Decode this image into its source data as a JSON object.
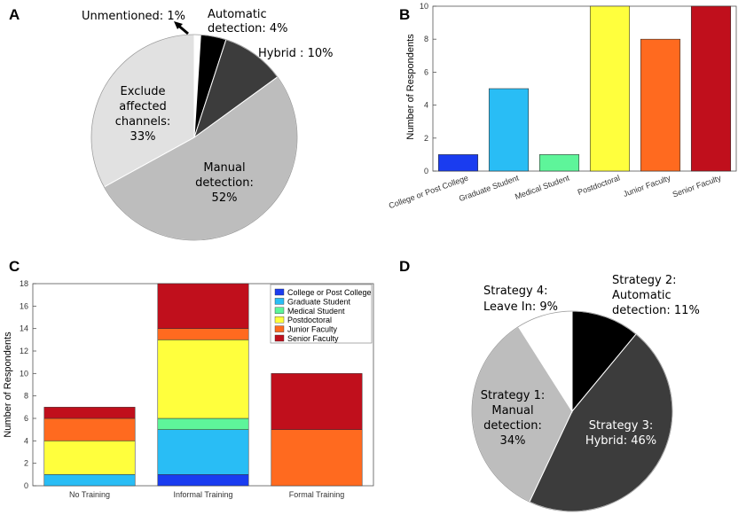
{
  "colors": {
    "college": "#1a3cf0",
    "graduate": "#29bdf5",
    "medical": "#5ef59a",
    "postdoc": "#ffff3d",
    "junior": "#ff6a1f",
    "senior": "#c00f1c"
  },
  "chart_data": [
    {
      "panel": "A",
      "type": "pie",
      "slices": [
        {
          "label": "Unmentioned: 1%",
          "value": 1,
          "color": "#ffffff"
        },
        {
          "label": "Automatic detection: 4%",
          "value": 4,
          "color": "#000000"
        },
        {
          "label": "Hybrid : 10%",
          "value": 10,
          "color": "#3c3c3c"
        },
        {
          "label": "Manual detection: 52%",
          "value": 52,
          "color": "#bdbdbd"
        },
        {
          "label": "Exclude affected channels: 33%",
          "value": 33,
          "color": "#e1e1e1"
        }
      ],
      "text_labels": {
        "unmentioned": "Unmentioned: 1%",
        "automatic_line1": "Automatic",
        "automatic_line2": "detection: 4%",
        "hybrid": "Hybrid : 10%",
        "exclude_line1": "Exclude",
        "exclude_line2": "affected",
        "exclude_line3": "channels:",
        "exclude_line4": "33%",
        "manual_line1": "Manual",
        "manual_line2": "detection:",
        "manual_line3": "52%"
      }
    },
    {
      "panel": "B",
      "type": "bar",
      "categories": [
        "College or Post College",
        "Graduate Student",
        "Medical Student",
        "Postdoctoral",
        "Junior Faculty",
        "Senior Faculty"
      ],
      "values": [
        1,
        5,
        1,
        10,
        8,
        10
      ],
      "colors": [
        "#1a3cf0",
        "#29bdf5",
        "#5ef59a",
        "#ffff3d",
        "#ff6a1f",
        "#c00f1c"
      ],
      "ylabel": "Number of Respondents",
      "ylim": [
        0,
        10
      ],
      "yticks": [
        "0",
        "2",
        "4",
        "6",
        "8",
        "10"
      ]
    },
    {
      "panel": "C",
      "type": "bar",
      "stacked": true,
      "categories": [
        "No Training",
        "Informal Training",
        "Formal Training"
      ],
      "series": [
        {
          "name": "College or Post College",
          "values": [
            0,
            1,
            0
          ],
          "color": "#1a3cf0"
        },
        {
          "name": "Graduate Student",
          "values": [
            1,
            4,
            0
          ],
          "color": "#29bdf5"
        },
        {
          "name": "Medical Student",
          "values": [
            0,
            1,
            0
          ],
          "color": "#5ef59a"
        },
        {
          "name": "Postdoctoral",
          "values": [
            3,
            7,
            0
          ],
          "color": "#ffff3d"
        },
        {
          "name": "Junior Faculty",
          "values": [
            2,
            1,
            5
          ],
          "color": "#ff6a1f"
        },
        {
          "name": "Senior Faculty",
          "values": [
            1,
            4,
            5
          ],
          "color": "#c00f1c"
        }
      ],
      "ylabel": "Number of Respondents",
      "ylim": [
        0,
        18
      ],
      "yticks": [
        "0",
        "2",
        "4",
        "6",
        "8",
        "10",
        "12",
        "14",
        "16",
        "18"
      ],
      "legend": "top-right"
    },
    {
      "panel": "D",
      "type": "pie",
      "slices": [
        {
          "label": "Strategy 2: Automatic detection: 11%",
          "value": 11,
          "color": "#000000"
        },
        {
          "label": "Strategy 3: Hybrid: 46%",
          "value": 46,
          "color": "#3c3c3c"
        },
        {
          "label": "Strategy 1: Manual detection: 34%",
          "value": 34,
          "color": "#bdbdbd"
        },
        {
          "label": "Strategy 4: Leave In: 9%",
          "value": 9,
          "color": "#ffffff"
        }
      ],
      "text_labels": {
        "s4_line1": "Strategy 4:",
        "s4_line2": "Leave In: 9%",
        "s2_line1": "Strategy 2:",
        "s2_line2": "Automatic",
        "s2_line3": "detection: 11%",
        "s1_line1": "Strategy 1:",
        "s1_line2": "Manual",
        "s1_line3": "detection:",
        "s1_line4": "34%",
        "s3_line1": "Strategy 3:",
        "s3_line2": "Hybrid: 46%"
      }
    }
  ],
  "panels": {
    "a": "A",
    "b": "B",
    "c": "C",
    "d": "D"
  }
}
